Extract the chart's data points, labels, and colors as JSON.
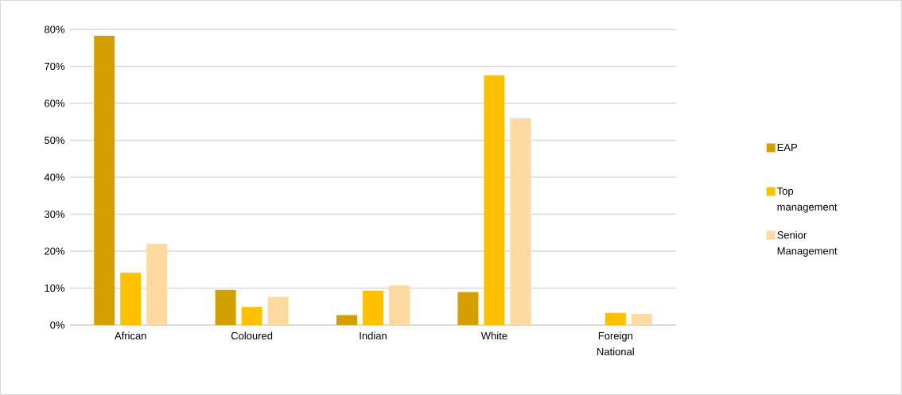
{
  "chart_data": {
    "type": "bar",
    "categories": [
      "African",
      "Coloured",
      "Indian",
      "White",
      "Foreign National"
    ],
    "series": [
      {
        "name": "EAP",
        "color": "#d4a000",
        "values": [
          78.3,
          9.5,
          2.7,
          8.9,
          null
        ]
      },
      {
        "name": "Top management",
        "color": "#ffc000",
        "values": [
          14.2,
          4.9,
          9.3,
          67.6,
          3.3
        ]
      },
      {
        "name": "Senior Management",
        "color": "#ffd9a0",
        "values": [
          22.0,
          7.6,
          10.7,
          55.9,
          3.0
        ]
      }
    ],
    "ylim": [
      0,
      80
    ],
    "yticks": [
      {
        "value": 0,
        "label": "0%"
      },
      {
        "value": 10,
        "label": "10%"
      },
      {
        "value": 20,
        "label": "20%"
      },
      {
        "value": 30,
        "label": "30%"
      },
      {
        "value": 40,
        "label": "40%"
      },
      {
        "value": 50,
        "label": "50%"
      },
      {
        "value": 60,
        "label": "60%"
      },
      {
        "value": 70,
        "label": "70%"
      },
      {
        "value": 80,
        "label": "80%"
      }
    ],
    "grid": "y",
    "legend": "right"
  }
}
